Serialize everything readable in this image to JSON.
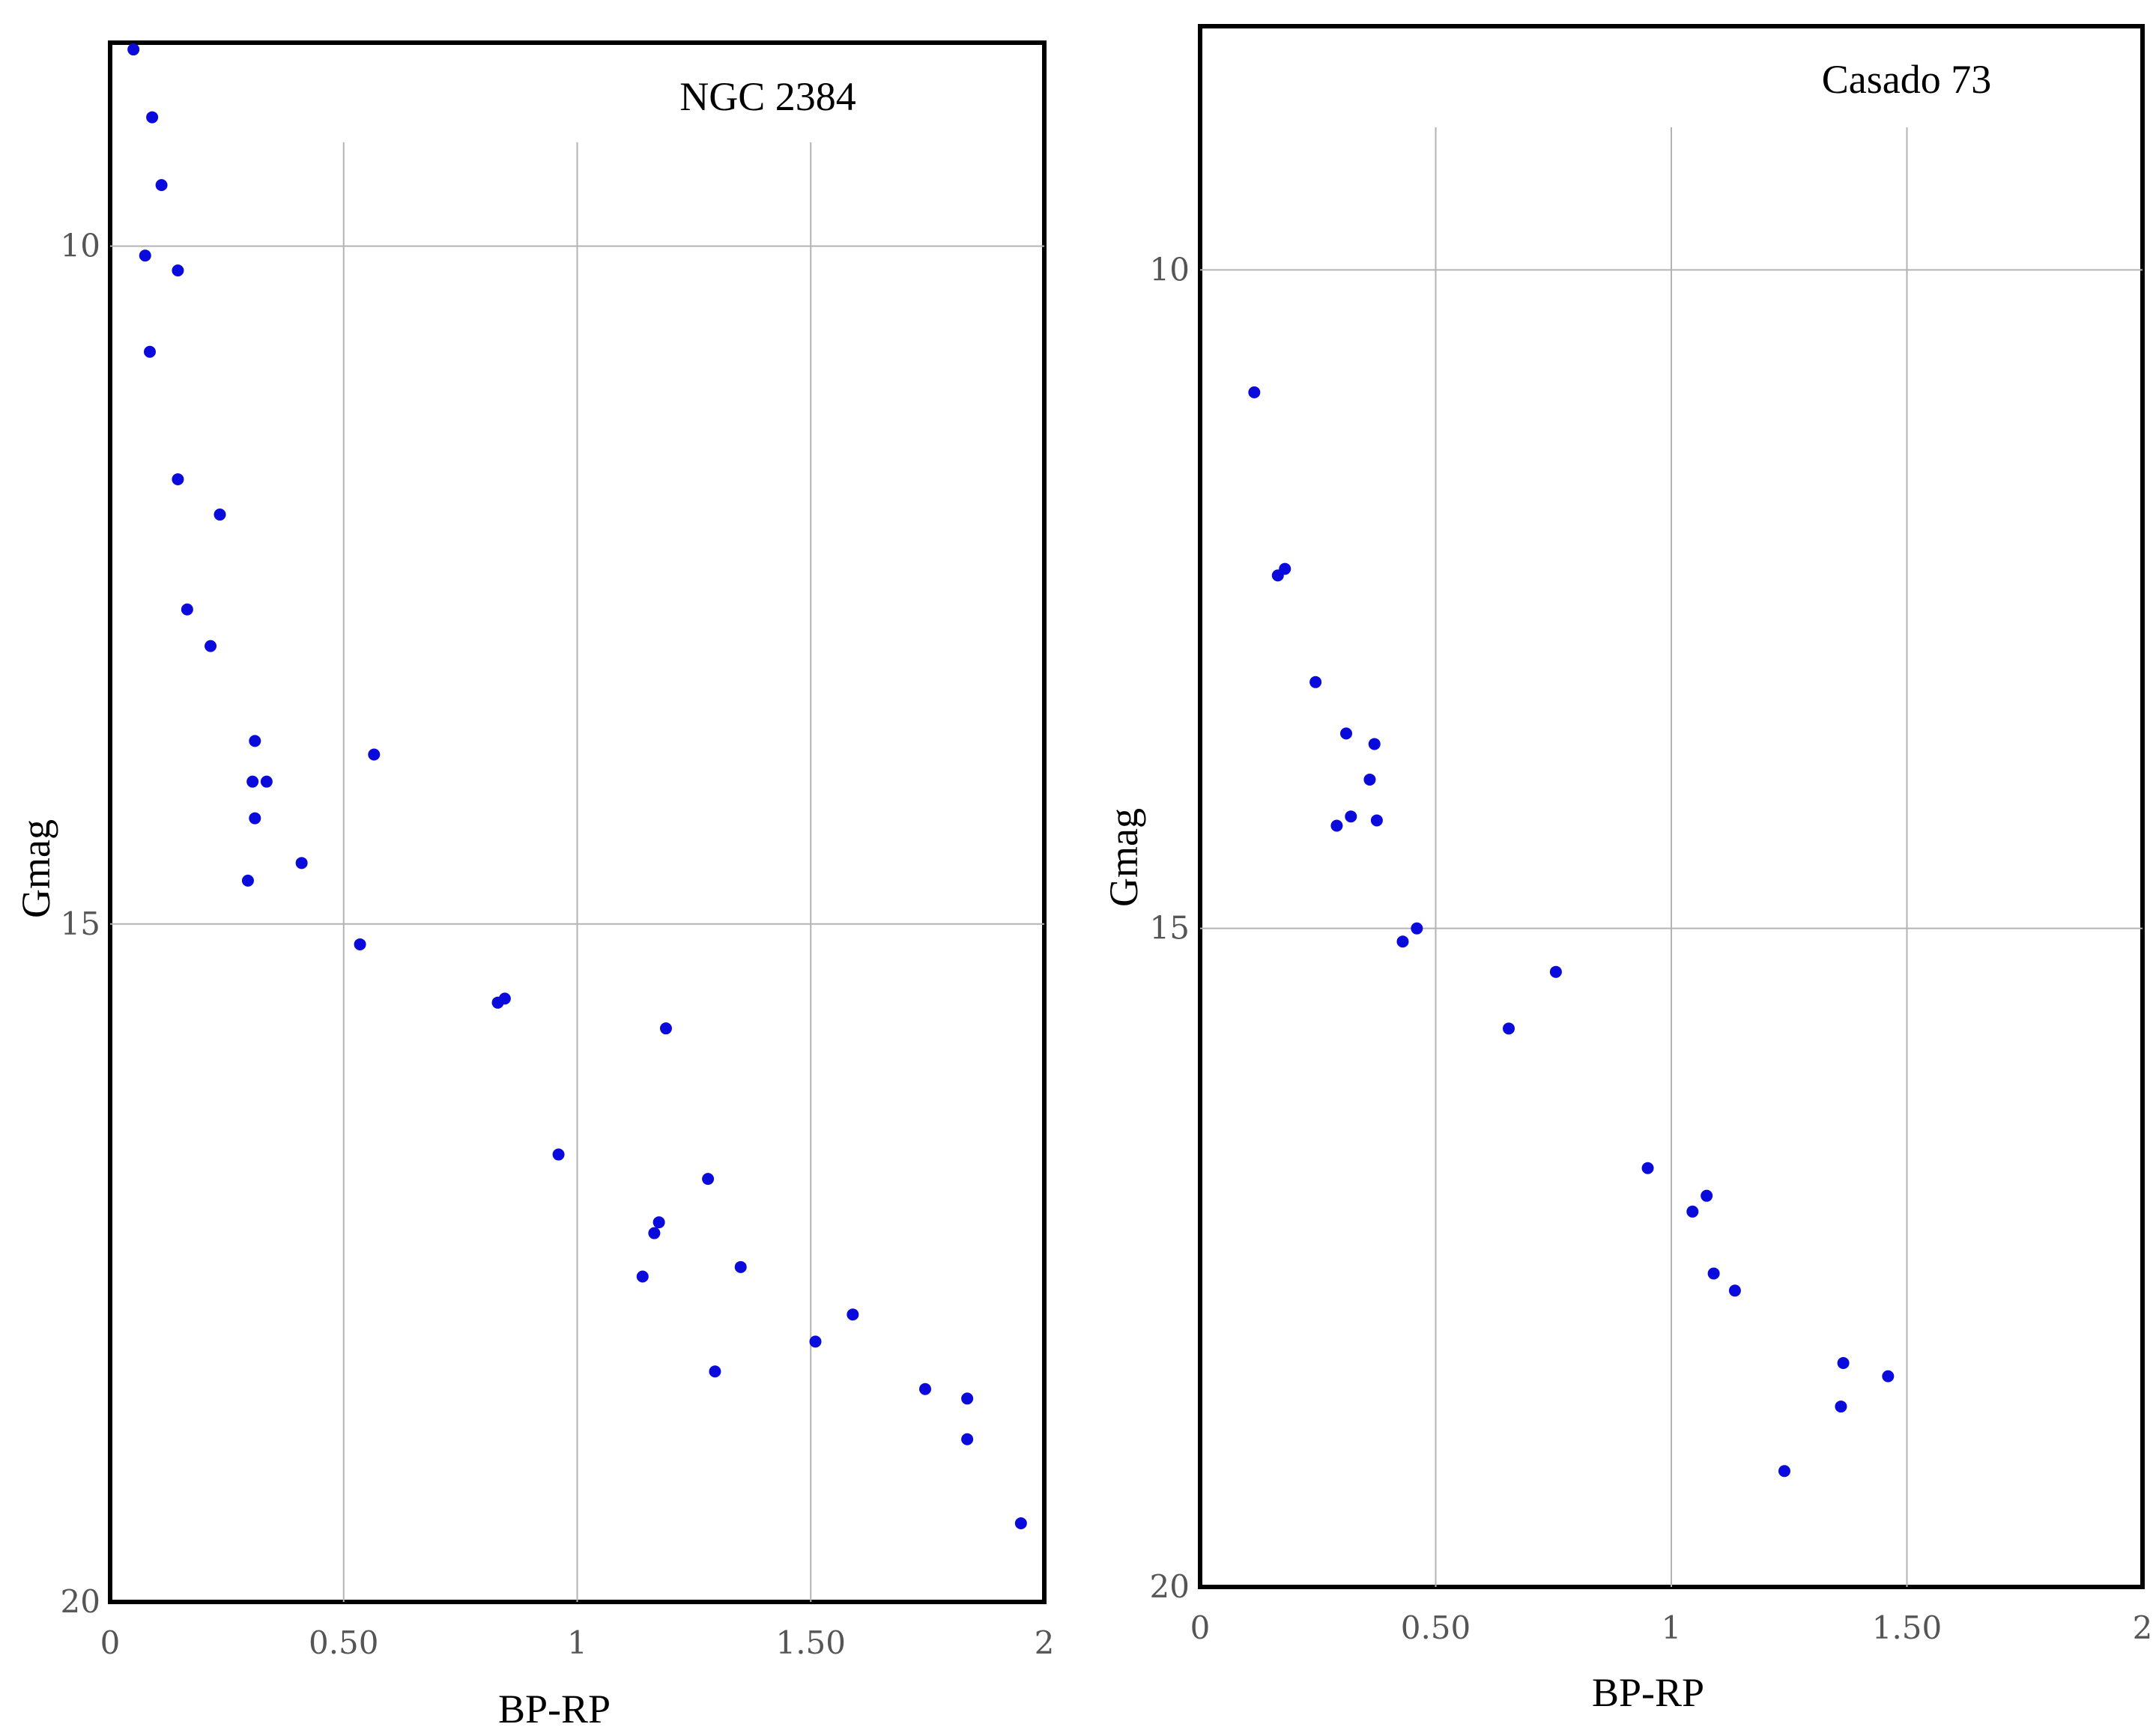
{
  "chart_data": [
    {
      "type": "scatter",
      "title": "NGC 2384",
      "xlabel": "BP-RP",
      "ylabel": "Gmag",
      "xlim": [
        0,
        2
      ],
      "ylim": [
        20,
        8.5
      ],
      "y_inverted": true,
      "grid": true,
      "x_ticks": [
        {
          "value": 0,
          "label": "0"
        },
        {
          "value": 0.5,
          "label": "0.50"
        },
        {
          "value": 1,
          "label": "1"
        },
        {
          "value": 1.5,
          "label": "1.50"
        },
        {
          "value": 2,
          "label": "2"
        }
      ],
      "y_ticks": [
        {
          "value": 10,
          "label": "10"
        },
        {
          "value": 15,
          "label": "15"
        },
        {
          "value": 20,
          "label": "20"
        }
      ],
      "grid_x": [
        0.5,
        1,
        1.5
      ],
      "grid_y": [
        10,
        15
      ],
      "point_color": "#0a0adc",
      "points": [
        {
          "x": 0.05,
          "y": 8.55
        },
        {
          "x": 0.09,
          "y": 9.05
        },
        {
          "x": 0.11,
          "y": 9.55
        },
        {
          "x": 0.075,
          "y": 10.07
        },
        {
          "x": 0.145,
          "y": 10.18
        },
        {
          "x": 0.085,
          "y": 10.78
        },
        {
          "x": 0.145,
          "y": 11.72
        },
        {
          "x": 0.235,
          "y": 11.98
        },
        {
          "x": 0.165,
          "y": 12.68
        },
        {
          "x": 0.215,
          "y": 12.95
        },
        {
          "x": 0.31,
          "y": 13.65
        },
        {
          "x": 0.565,
          "y": 13.75
        },
        {
          "x": 0.305,
          "y": 13.95
        },
        {
          "x": 0.335,
          "y": 13.95
        },
        {
          "x": 0.31,
          "y": 14.22
        },
        {
          "x": 0.41,
          "y": 14.55
        },
        {
          "x": 0.295,
          "y": 14.68
        },
        {
          "x": 0.535,
          "y": 15.15
        },
        {
          "x": 0.83,
          "y": 15.58
        },
        {
          "x": 0.845,
          "y": 15.55
        },
        {
          "x": 1.19,
          "y": 15.77
        },
        {
          "x": 0.96,
          "y": 16.7
        },
        {
          "x": 1.28,
          "y": 16.88
        },
        {
          "x": 1.175,
          "y": 17.2
        },
        {
          "x": 1.165,
          "y": 17.28
        },
        {
          "x": 1.14,
          "y": 17.6
        },
        {
          "x": 1.35,
          "y": 17.53
        },
        {
          "x": 1.59,
          "y": 17.88
        },
        {
          "x": 1.51,
          "y": 18.08
        },
        {
          "x": 1.295,
          "y": 18.3
        },
        {
          "x": 1.745,
          "y": 18.43
        },
        {
          "x": 1.835,
          "y": 18.5
        },
        {
          "x": 1.835,
          "y": 18.8
        },
        {
          "x": 1.95,
          "y": 19.42
        }
      ]
    },
    {
      "type": "scatter",
      "title": "Casado 73",
      "xlabel": "BP-RP",
      "ylabel": "Gmag",
      "xlim": [
        0,
        2
      ],
      "ylim": [
        20,
        8.15
      ],
      "y_inverted": true,
      "grid": true,
      "x_ticks": [
        {
          "value": 0,
          "label": "0"
        },
        {
          "value": 0.5,
          "label": "0.50"
        },
        {
          "value": 1,
          "label": "1"
        },
        {
          "value": 1.5,
          "label": "1.50"
        },
        {
          "value": 2,
          "label": "2"
        }
      ],
      "y_ticks": [
        {
          "value": 10,
          "label": "10"
        },
        {
          "value": 15,
          "label": "15"
        },
        {
          "value": 20,
          "label": "20"
        }
      ],
      "grid_x": [
        0.5,
        1,
        1.5
      ],
      "grid_y": [
        10,
        15
      ],
      "point_color": "#0a0adc",
      "points": [
        {
          "x": 0.115,
          "y": 10.93
        },
        {
          "x": 0.165,
          "y": 12.32
        },
        {
          "x": 0.18,
          "y": 12.27
        },
        {
          "x": 0.245,
          "y": 13.13
        },
        {
          "x": 0.31,
          "y": 13.52
        },
        {
          "x": 0.37,
          "y": 13.6
        },
        {
          "x": 0.36,
          "y": 13.87
        },
        {
          "x": 0.32,
          "y": 14.15
        },
        {
          "x": 0.29,
          "y": 14.22
        },
        {
          "x": 0.375,
          "y": 14.18
        },
        {
          "x": 0.46,
          "y": 15.0
        },
        {
          "x": 0.43,
          "y": 15.1
        },
        {
          "x": 0.755,
          "y": 15.33
        },
        {
          "x": 0.655,
          "y": 15.76
        },
        {
          "x": 0.95,
          "y": 16.82
        },
        {
          "x": 1.075,
          "y": 17.03
        },
        {
          "x": 1.045,
          "y": 17.15
        },
        {
          "x": 1.09,
          "y": 17.62
        },
        {
          "x": 1.135,
          "y": 17.75
        },
        {
          "x": 1.365,
          "y": 18.3
        },
        {
          "x": 1.46,
          "y": 18.4
        },
        {
          "x": 1.36,
          "y": 18.63
        },
        {
          "x": 1.24,
          "y": 19.12
        }
      ]
    }
  ]
}
